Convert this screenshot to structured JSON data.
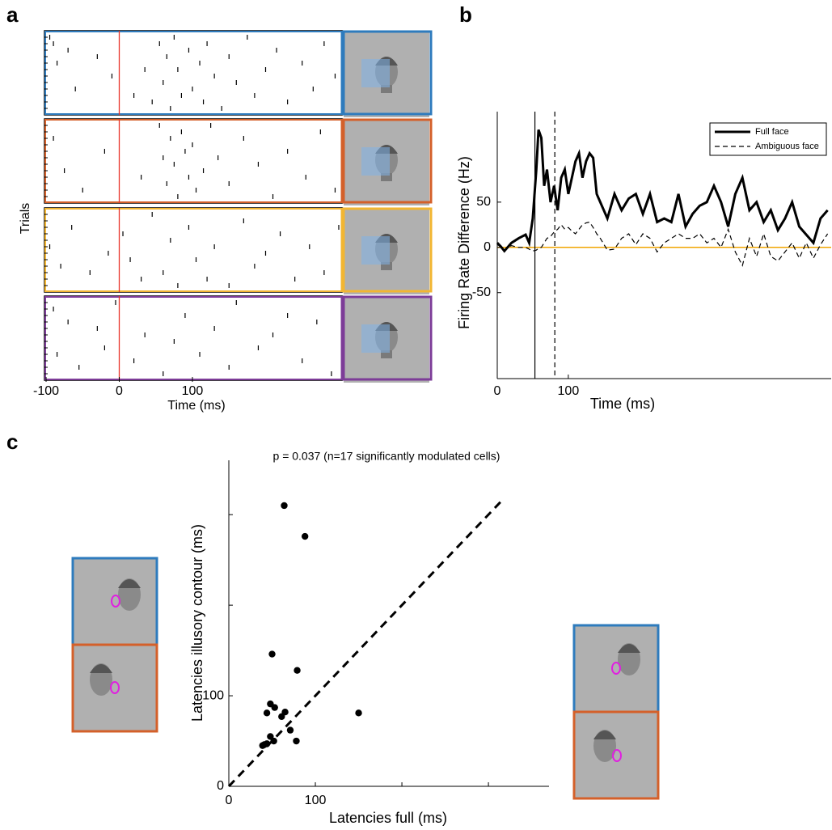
{
  "chart_data": [
    {
      "type": "raster",
      "label": "a",
      "ylabel": "Trials",
      "xlabel": "Time (ms)",
      "xlim": [
        -100,
        305
      ],
      "xticks": [
        -100,
        0,
        100
      ],
      "ylim": [
        0,
        13
      ],
      "vlines": [
        0
      ],
      "panels": [
        {
          "color": "#2e7bbd",
          "spikes": [
            [
              -95,
              1
            ],
            [
              -90,
              2
            ],
            [
              -70,
              3
            ],
            [
              -85,
              5
            ],
            [
              -60,
              9
            ],
            [
              -30,
              4
            ],
            [
              -10,
              7
            ],
            [
              20,
              10
            ],
            [
              35,
              6
            ],
            [
              45,
              11
            ],
            [
              55,
              2
            ],
            [
              60,
              8
            ],
            [
              65,
              4
            ],
            [
              70,
              12
            ],
            [
              75,
              1
            ],
            [
              80,
              6
            ],
            [
              85,
              10
            ],
            [
              95,
              3
            ],
            [
              100,
              9
            ],
            [
              110,
              5
            ],
            [
              115,
              11
            ],
            [
              120,
              2
            ],
            [
              130,
              7
            ],
            [
              140,
              12
            ],
            [
              150,
              4
            ],
            [
              160,
              8
            ],
            [
              175,
              1
            ],
            [
              185,
              10
            ],
            [
              200,
              6
            ],
            [
              215,
              3
            ],
            [
              230,
              11
            ],
            [
              250,
              5
            ],
            [
              265,
              9
            ],
            [
              280,
              2
            ],
            [
              295,
              7
            ]
          ]
        },
        {
          "color": "#d4602a",
          "spikes": [
            [
              -90,
              3
            ],
            [
              -75,
              8
            ],
            [
              -50,
              11
            ],
            [
              -20,
              5
            ],
            [
              30,
              9
            ],
            [
              55,
              1
            ],
            [
              60,
              6
            ],
            [
              65,
              10
            ],
            [
              70,
              3
            ],
            [
              75,
              7
            ],
            [
              80,
              12
            ],
            [
              85,
              2
            ],
            [
              90,
              5
            ],
            [
              95,
              9
            ],
            [
              100,
              4
            ],
            [
              105,
              11
            ],
            [
              115,
              8
            ],
            [
              125,
              1
            ],
            [
              135,
              6
            ],
            [
              150,
              10
            ],
            [
              170,
              3
            ],
            [
              190,
              7
            ],
            [
              210,
              12
            ],
            [
              230,
              5
            ],
            [
              255,
              9
            ],
            [
              275,
              2
            ],
            [
              295,
              11
            ]
          ]
        },
        {
          "color": "#f2b632",
          "spikes": [
            [
              -95,
              6
            ],
            [
              -80,
              9
            ],
            [
              -65,
              3
            ],
            [
              -40,
              10
            ],
            [
              -15,
              7
            ],
            [
              5,
              4
            ],
            [
              15,
              8
            ],
            [
              30,
              11
            ],
            [
              45,
              1
            ],
            [
              60,
              10
            ],
            [
              70,
              5
            ],
            [
              80,
              12
            ],
            [
              95,
              3
            ],
            [
              105,
              8
            ],
            [
              120,
              11
            ],
            [
              130,
              6
            ],
            [
              150,
              12
            ],
            [
              170,
              2
            ],
            [
              185,
              9
            ],
            [
              200,
              7
            ],
            [
              220,
              4
            ],
            [
              240,
              11
            ],
            [
              260,
              6
            ],
            [
              280,
              10
            ],
            [
              300,
              3
            ]
          ]
        },
        {
          "color": "#7d3c98",
          "spikes": [
            [
              -90,
              2
            ],
            [
              -85,
              9
            ],
            [
              -70,
              4
            ],
            [
              -55,
              11
            ],
            [
              -30,
              5
            ],
            [
              -20,
              8
            ],
            [
              -5,
              1
            ],
            [
              20,
              10
            ],
            [
              35,
              6
            ],
            [
              60,
              12
            ],
            [
              75,
              7
            ],
            [
              90,
              3
            ],
            [
              110,
              9
            ],
            [
              130,
              5
            ],
            [
              150,
              11
            ],
            [
              160,
              1
            ],
            [
              190,
              8
            ],
            [
              210,
              6
            ],
            [
              230,
              3
            ],
            [
              250,
              10
            ],
            [
              270,
              4
            ],
            [
              290,
              12
            ]
          ]
        }
      ]
    },
    {
      "type": "line",
      "label": "b",
      "ylabel": "Firing Rate Difference (Hz)",
      "xlabel": "Time (ms)",
      "xlim": [
        0,
        470
      ],
      "xticks": [
        0,
        100
      ],
      "ylim": [
        -145,
        150
      ],
      "yticks": [
        -50,
        0,
        50
      ],
      "zero_line_color": "#f0a500",
      "vlines": [
        {
          "value": 53,
          "style": "solid"
        },
        {
          "value": 81,
          "style": "dashed"
        }
      ],
      "x": [
        0,
        5,
        10,
        20,
        30,
        40,
        45,
        50,
        55,
        58,
        62,
        66,
        70,
        75,
        80,
        85,
        90,
        95,
        100,
        105,
        110,
        115,
        120,
        125,
        130,
        135,
        140,
        145,
        155,
        165,
        175,
        185,
        195,
        205,
        215,
        225,
        235,
        245,
        255,
        265,
        275,
        285,
        295,
        305,
        315,
        325,
        335,
        345,
        355,
        365,
        375,
        385,
        395,
        405,
        415,
        425,
        435,
        445,
        455,
        465
      ],
      "series": [
        {
          "name": "Full face",
          "color": "#000000",
          "style": "solid",
          "values": [
            5,
            1,
            -4,
            5,
            10,
            14,
            5,
            32,
            86,
            130,
            121,
            68,
            86,
            50,
            68,
            41,
            77,
            86,
            59,
            77,
            95,
            104,
            77,
            95,
            104,
            99,
            59,
            50,
            32,
            59,
            41,
            54,
            59,
            37,
            59,
            28,
            32,
            28,
            59,
            23,
            37,
            46,
            50,
            68,
            50,
            23,
            59,
            77,
            41,
            50,
            28,
            41,
            19,
            32,
            50,
            23,
            14,
            5,
            32,
            41
          ]
        },
        {
          "name": "Ambiguous face",
          "color": "#000000",
          "style": "dashed",
          "values": [
            3,
            1,
            -3,
            2,
            0,
            0,
            -2,
            -4,
            -3,
            -1,
            0,
            5,
            10,
            12,
            17,
            20,
            25,
            20,
            22,
            18,
            15,
            20,
            25,
            27,
            28,
            22,
            15,
            10,
            -3,
            -2,
            10,
            15,
            3,
            15,
            10,
            -5,
            5,
            10,
            15,
            10,
            10,
            15,
            5,
            10,
            0,
            20,
            -5,
            -20,
            10,
            -10,
            15,
            -10,
            -15,
            -5,
            5,
            -12,
            5,
            -12,
            3,
            15
          ]
        }
      ]
    },
    {
      "type": "scatter",
      "label": "c",
      "title": "p = 0.037 (n=17 significantly modulated cells)",
      "xlabel": "Latencies full (ms)",
      "ylabel": "Latencies illusory contour (ms)",
      "xlim": [
        0,
        370
      ],
      "ylim": [
        0,
        360
      ],
      "xticks": [
        0,
        100
      ],
      "yticks": [
        0,
        100
      ],
      "xminorticks": [
        200,
        300
      ],
      "yminorticks": [
        200,
        300
      ],
      "reference_line": [
        0,
        315
      ],
      "color": "#000000",
      "x": [
        64,
        88,
        50,
        79,
        48,
        53,
        44,
        61,
        65,
        150,
        71,
        48,
        52,
        44,
        41,
        78,
        39
      ],
      "y": [
        310,
        276,
        146,
        128,
        91,
        87,
        81,
        77,
        82,
        81,
        62,
        55,
        50,
        47,
        46,
        50,
        45
      ]
    }
  ]
}
